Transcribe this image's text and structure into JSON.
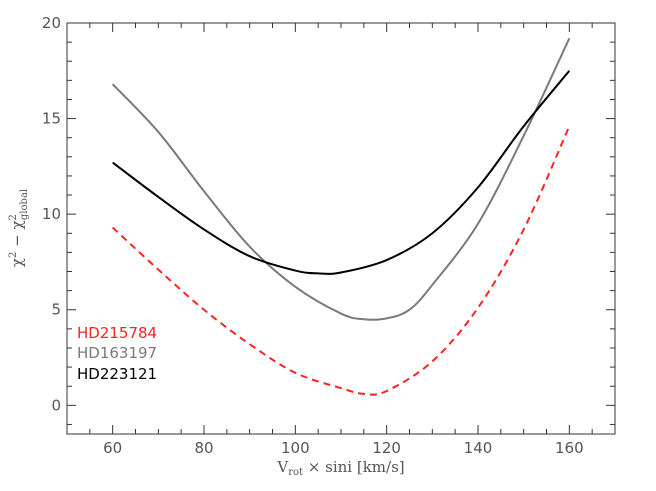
{
  "chart_data": {
    "type": "line",
    "xlabel": {
      "main": "V",
      "sub": "rot",
      "rest": " × sini  [km/s]"
    },
    "ylabel": {
      "chi": "χ",
      "sup1": "2",
      "minus": " − ",
      "chi2": "χ",
      "sup2": "2",
      "sub2": "global"
    },
    "xlim": [
      50,
      170
    ],
    "ylim": [
      -1.5,
      20
    ],
    "xticks_major": [
      60,
      80,
      100,
      120,
      140,
      160
    ],
    "xtick_labels": [
      "60",
      "80",
      "100",
      "120",
      "140",
      "160"
    ],
    "yticks_major": [
      0,
      5,
      10,
      15,
      20
    ],
    "ytick_labels": [
      "0",
      "5",
      "10",
      "15",
      "20"
    ],
    "grid": false,
    "legend_position": "bottom-left",
    "series": [
      {
        "name": "HD215784",
        "color": "#ff2222",
        "dash": "dashed",
        "x": [
          60,
          70,
          80,
          90,
          100,
          110,
          115,
          120,
          130,
          140,
          150,
          160
        ],
        "y": [
          9.3,
          7.1,
          5.0,
          3.2,
          1.7,
          0.9,
          0.6,
          0.75,
          2.3,
          5.1,
          9.2,
          14.6
        ]
      },
      {
        "name": "HD163197",
        "color": "#7a7a7a",
        "dash": "solid",
        "x": [
          60,
          70,
          80,
          90,
          100,
          110,
          115,
          120,
          125,
          130,
          140,
          150,
          160
        ],
        "y": [
          16.8,
          14.3,
          11.2,
          8.3,
          6.2,
          4.8,
          4.5,
          4.55,
          5.0,
          6.3,
          9.5,
          14.1,
          19.2
        ]
      },
      {
        "name": "HD223121",
        "color": "#000000",
        "dash": "solid",
        "x": [
          60,
          70,
          80,
          90,
          100,
          105,
          110,
          120,
          130,
          140,
          150,
          160
        ],
        "y": [
          12.7,
          10.9,
          9.2,
          7.8,
          7.05,
          6.9,
          6.95,
          7.6,
          9.0,
          11.4,
          14.6,
          17.5
        ]
      }
    ]
  }
}
